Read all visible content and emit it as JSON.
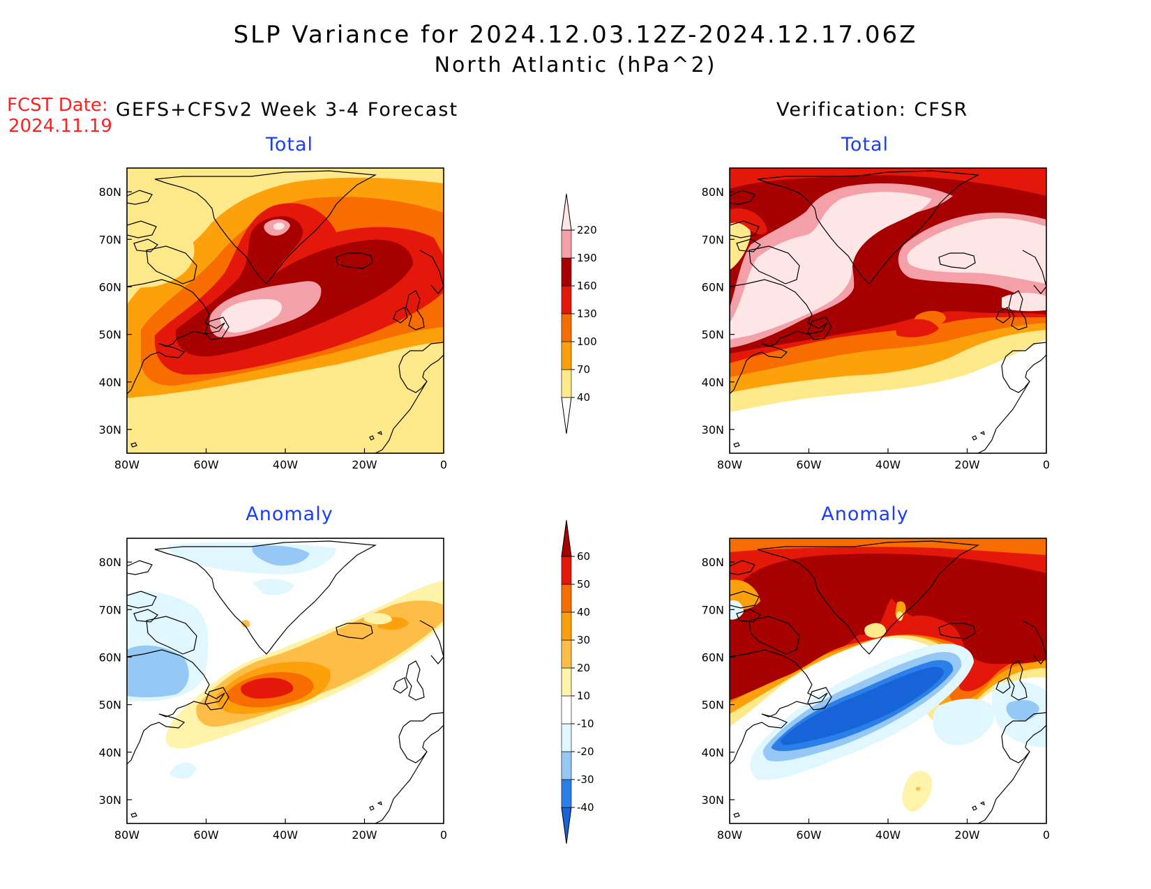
{
  "title": {
    "line1": "SLP Variance for 2024.12.03.12Z-2024.12.17.06Z",
    "line2": "North Atlantic (hPa^2)"
  },
  "forecast_date": {
    "label": "FCST Date:",
    "value": "2024.11.19"
  },
  "columns": {
    "left": "GEFS+CFSv2 Week 3-4 Forecast",
    "right": "Verification: CFSR"
  },
  "axes": {
    "lon_ticks": [
      "80W",
      "60W",
      "40W",
      "20W",
      "0"
    ],
    "lat_ticks": [
      "30N",
      "40N",
      "50N",
      "60N",
      "70N",
      "80N"
    ]
  },
  "panels": [
    {
      "title": "Total",
      "type": "forecast total"
    },
    {
      "title": "Total",
      "type": "verification total"
    },
    {
      "title": "Anomaly",
      "type": "forecast anomaly"
    },
    {
      "title": "Anomaly",
      "type": "verification anomaly"
    }
  ],
  "colorbars": {
    "total": {
      "labels": [
        "40",
        "70",
        "100",
        "130",
        "160",
        "190",
        "220"
      ],
      "colors": [
        "#ffffff",
        "#fde98a",
        "#fca10c",
        "#f86d00",
        "#e3180b",
        "#a60000",
        "#f4a0a8",
        "#ffe6e6"
      ]
    },
    "anomaly": {
      "labels": [
        "-40",
        "-30",
        "-20",
        "-10",
        "10",
        "20",
        "30",
        "40",
        "50",
        "60"
      ],
      "colors": [
        "#1763d8",
        "#2c7fe8",
        "#95c8f5",
        "#e1f7ff",
        "#ffffff",
        "#fef3a8",
        "#fdbd46",
        "#fca10c",
        "#f86d00",
        "#e3180b",
        "#a60000"
      ]
    }
  }
}
